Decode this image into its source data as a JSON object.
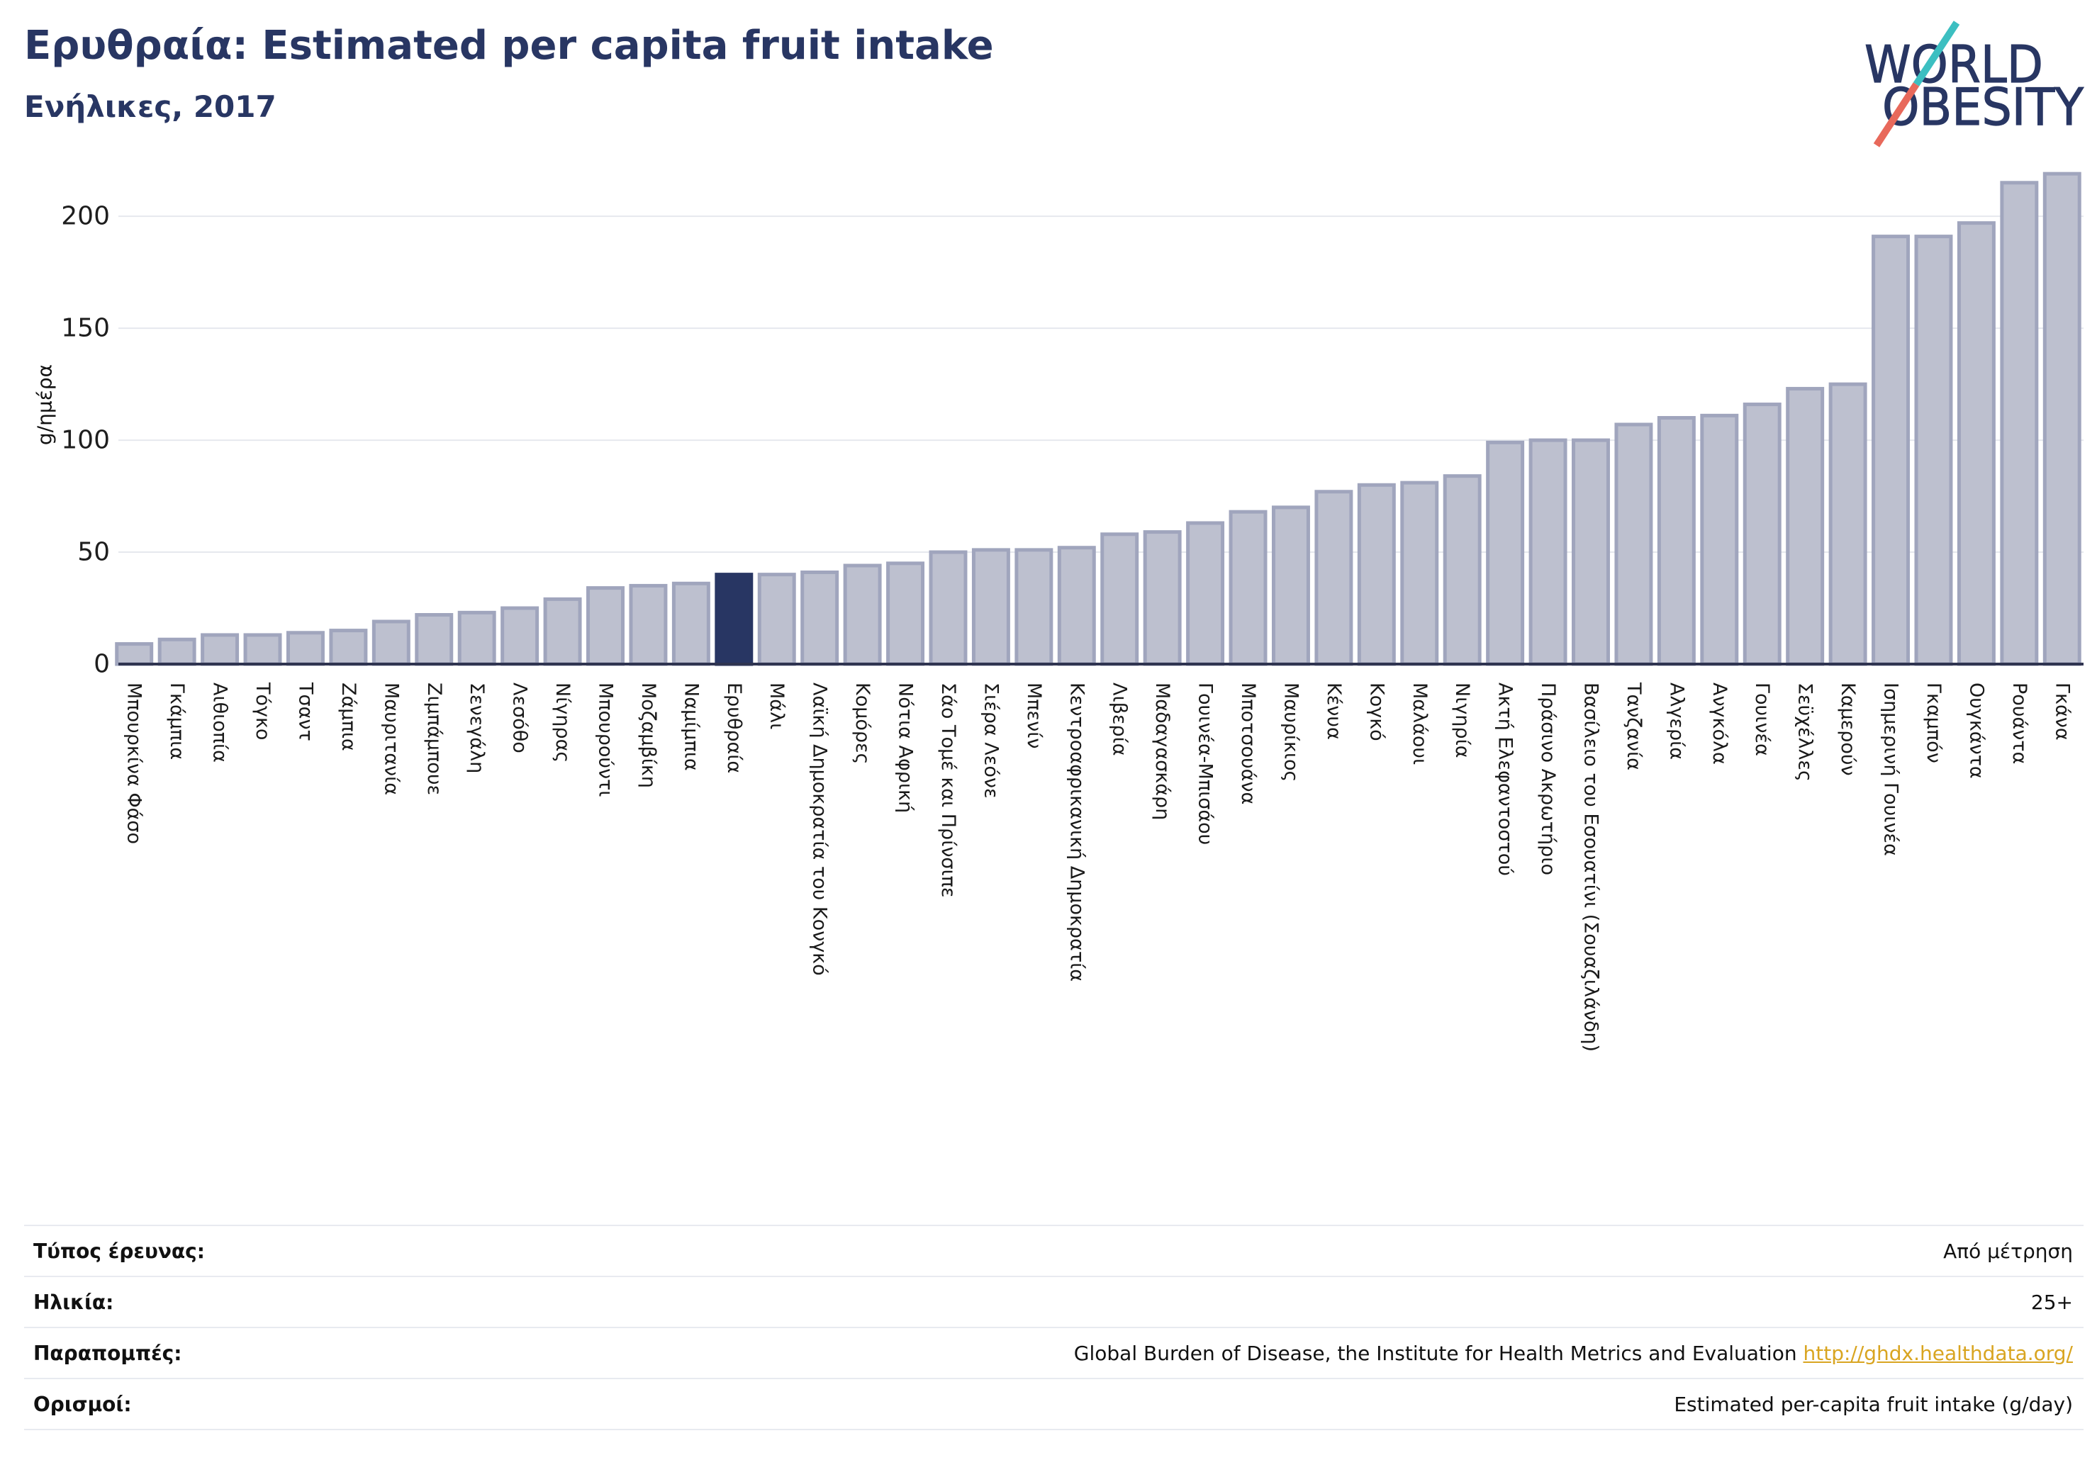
{
  "chart_data": {
    "type": "bar",
    "title": "Ερυθραία: Estimated per capita fruit intake",
    "subtitle": "Ενήλικες, 2017",
    "xlabel": "",
    "ylabel": "g/ημέρα",
    "ylim": [
      0,
      220
    ],
    "yticks": [
      0,
      50,
      100,
      150,
      200
    ],
    "grid": true,
    "highlight_index": 14,
    "categories": [
      "Μπουρκίνα Φάσο",
      "Γκάμπια",
      "Αιθιοπία",
      "Τόγκο",
      "Τσαντ",
      "Ζάμπια",
      "Μαυριτανία",
      "Ζιμπάμπουε",
      "Σενεγάλη",
      "Λεσόθο",
      "Νίγηρας",
      "Μπουρούντι",
      "Μοζαμβίκη",
      "Ναμίμπια",
      "Ερυθραία",
      "Μάλι",
      "Λαϊκή Δημοκρατία του Κονγκό",
      "Κομόρες",
      "Νότια Αφρική",
      "Σάο Τομέ και Πρίνσιπε",
      "Σιέρα Λεόνε",
      "Μπενίν",
      "Κεντροαφρικανική Δημοκρατία",
      "Λιβερία",
      "Μαδαγασκάρη",
      "Γουινέα-Μπισάου",
      "Μποτσουάνα",
      "Μαυρίκιος",
      "Κένυα",
      "Κογκό",
      "Μαλάουι",
      "Νιγηρία",
      "Ακτή Ελεφαντοστού",
      "Πράσινο Ακρωτήριο",
      "Βασίλειο του Εσουατίνι (Σουαζιλάνδη)",
      "Τανζανία",
      "Αλγερία",
      "Ανγκόλα",
      "Γουινέα",
      "Σεϋχέλλες",
      "Καμερούν",
      "Ισημερινή Γουινέα",
      "Γκαμπόν",
      "Ουγκάντα",
      "Ρουάντα",
      "Γκάνα"
    ],
    "values": [
      9,
      11,
      13,
      13,
      14,
      15,
      19,
      22,
      23,
      25,
      29,
      34,
      35,
      36,
      40,
      40,
      41,
      44,
      45,
      50,
      51,
      51,
      52,
      58,
      59,
      63,
      68,
      70,
      77,
      80,
      81,
      84,
      99,
      100,
      100,
      107,
      110,
      111,
      116,
      123,
      125,
      191,
      191,
      197,
      215,
      219
    ]
  },
  "logo": {
    "line1": "WORLD",
    "line2": "OBESITY"
  },
  "colors": {
    "title": "#283663",
    "bar_fill": "#bdc0cf",
    "bar_stroke": "#a0a5bd",
    "highlight_bar": "#283663",
    "gridline": "#e6e8ee",
    "axis": "#2f3450",
    "link": "#d9a521",
    "logo_teal": "#3cbfc1",
    "logo_coral": "#e8695b"
  },
  "info_table": {
    "rows": [
      {
        "label": "Τύπος έρευνας:",
        "value": "Από μέτρηση"
      },
      {
        "label": "Ηλικία:",
        "value": "25+"
      },
      {
        "label": "Παραπομπές:",
        "value": "Global Burden of Disease, the Institute for Health Metrics and Evaluation",
        "link": "http://ghdx.healthdata.org/"
      },
      {
        "label": "Ορισμοί:",
        "value": "Estimated per-capita fruit intake (g/day)"
      }
    ]
  }
}
